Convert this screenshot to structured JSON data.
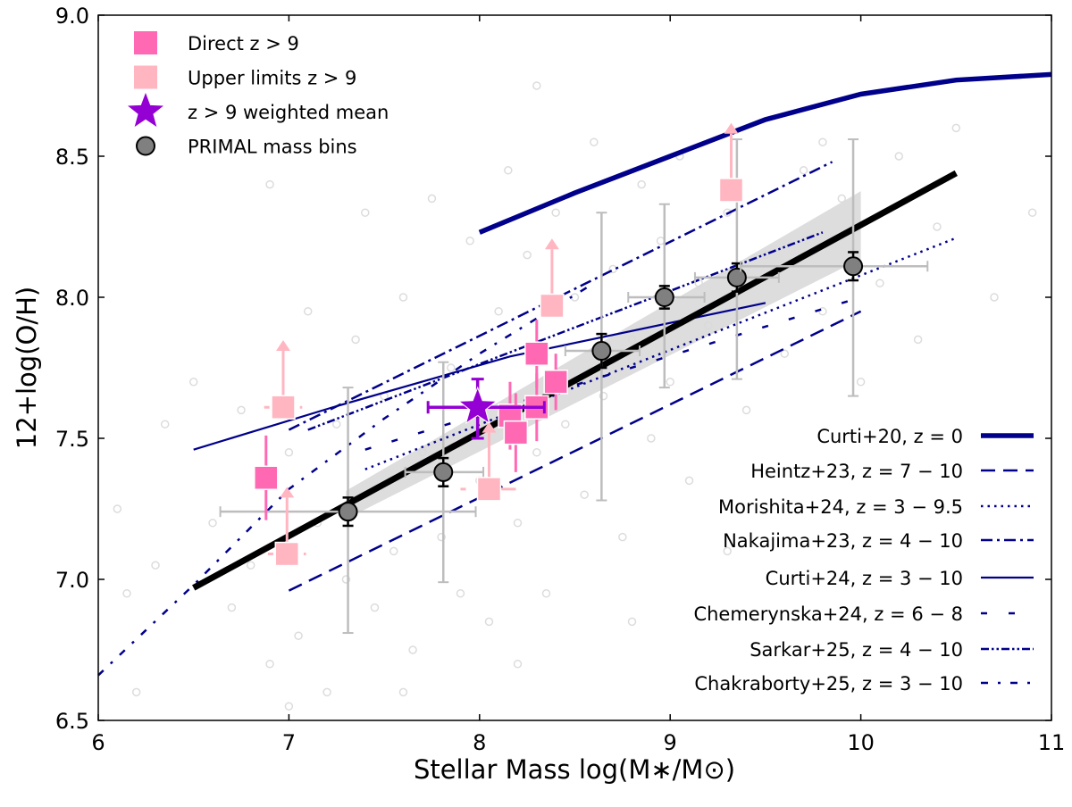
{
  "chart_data": {
    "type": "scatter",
    "xlabel": "Stellar Mass log(M∗/M⊙)",
    "ylabel": "12+log(O/H)",
    "xlim": [
      6,
      11
    ],
    "ylim": [
      6.5,
      9.0
    ],
    "xticks": [
      "6",
      "7",
      "8",
      "9",
      "10",
      "11"
    ],
    "yticks": [
      "6.5",
      "7.0",
      "7.5",
      "8.0",
      "8.5",
      "9.0"
    ],
    "grid": false,
    "legend_placement": [
      "top-left",
      "bottom-right"
    ],
    "colors": {
      "direct": "#ff69b4",
      "upper": "#ffb6c1",
      "mean": "#9400d3",
      "primal": "#808080",
      "relations": "#00008b",
      "fit": "#000000",
      "background": "#d3d3d3"
    },
    "marker_legend": [
      {
        "label": "Direct z > 9",
        "marker": "square",
        "color": "#ff69b4"
      },
      {
        "label": "Upper limits z > 9",
        "marker": "square",
        "color": "#ffb6c1"
      },
      {
        "label": "z > 9 weighted mean",
        "marker": "star",
        "color": "#9400d3"
      },
      {
        "label": "PRIMAL mass bins",
        "marker": "circle",
        "color": "#808080"
      }
    ],
    "direct": [
      {
        "x": 6.88,
        "y": 7.36,
        "yerr": 0.15
      },
      {
        "x": 8.16,
        "y": 7.58,
        "yerr": 0.12
      },
      {
        "x": 8.19,
        "y": 7.52,
        "yerr": 0.14
      },
      {
        "x": 8.3,
        "y": 7.61,
        "yerr": 0.12
      },
      {
        "x": 8.3,
        "y": 7.8,
        "yerr": 0.12
      },
      {
        "x": 8.4,
        "y": 7.7,
        "yerr": 0.1
      }
    ],
    "upper_limits": [
      {
        "x": 6.97,
        "y": 7.61,
        "xerr": 0.1
      },
      {
        "x": 6.99,
        "y": 7.09,
        "xerr": 0.1
      },
      {
        "x": 8.05,
        "y": 7.32,
        "xerr": 0.15
      },
      {
        "x": 8.38,
        "y": 7.97,
        "xerr": 0.0
      },
      {
        "x": 9.32,
        "y": 8.38,
        "xerr": 0.0
      }
    ],
    "weighted_mean": {
      "x": 7.99,
      "y": 7.61,
      "xerr": [
        7.73,
        8.34
      ],
      "yerr": [
        7.5,
        7.71
      ]
    },
    "primal_bins": [
      {
        "x": 7.31,
        "y": 7.24,
        "xrange": [
          6.64,
          7.98
        ],
        "yrange": [
          6.81,
          7.68
        ],
        "yerr": 0.05
      },
      {
        "x": 7.81,
        "y": 7.38,
        "xrange": [
          7.61,
          8.02
        ],
        "yrange": [
          6.99,
          7.77
        ],
        "yerr": 0.05
      },
      {
        "x": 8.64,
        "y": 7.81,
        "xrange": [
          8.45,
          8.84
        ],
        "yrange": [
          7.28,
          8.3
        ],
        "yerr": 0.06
      },
      {
        "x": 8.97,
        "y": 8.0,
        "xrange": [
          8.78,
          9.18
        ],
        "yrange": [
          7.68,
          8.33
        ],
        "yerr": 0.04
      },
      {
        "x": 9.35,
        "y": 8.07,
        "xrange": [
          9.13,
          9.57
        ],
        "yrange": [
          7.71,
          8.56
        ],
        "yerr": 0.05
      },
      {
        "x": 9.96,
        "y": 8.11,
        "xrange": [
          9.37,
          10.35
        ],
        "yrange": [
          7.65,
          8.56
        ],
        "yerr": 0.05
      }
    ],
    "fit": {
      "x": [
        6.5,
        10.5
      ],
      "y": [
        6.97,
        8.44
      ],
      "band_x": [
        7.3,
        10.0
      ],
      "band_halfwidth": [
        0.05,
        0.12
      ]
    },
    "relations": [
      {
        "name": "Curti+20, z = 0",
        "style": "thick",
        "x": [
          8.0,
          8.5,
          9.0,
          9.5,
          10.0,
          10.5,
          11.0
        ],
        "y": [
          8.23,
          8.37,
          8.5,
          8.63,
          8.72,
          8.77,
          8.79
        ]
      },
      {
        "name": "Heintz+23, z = 7 − 10",
        "style": "long-dash",
        "x": [
          7.0,
          10.0
        ],
        "y": [
          6.96,
          7.95
        ]
      },
      {
        "name": "Morishita+24, z = 3 − 9.5",
        "style": "dotted",
        "x": [
          7.4,
          10.5
        ],
        "y": [
          7.39,
          8.21
        ]
      },
      {
        "name": "Nakajima+23, z = 4 − 10",
        "style": "dash-dot",
        "x": [
          7.0,
          9.85
        ],
        "y": [
          7.53,
          8.48
        ]
      },
      {
        "name": "Curti+24, z = 3 − 10",
        "style": "solid",
        "x": [
          6.5,
          7.23,
          8.16,
          9.5
        ],
        "y": [
          7.46,
          7.61,
          7.79,
          7.98
        ]
      },
      {
        "name": "Chemerynska+24, z = 6 − 8",
        "style": "short-dash",
        "x": [
          7.4,
          10.0
        ],
        "y": [
          7.46,
          8.0
        ]
      },
      {
        "name": "Sarkar+25, z = 4 − 10",
        "style": "dash-dot-dot",
        "x": [
          7.1,
          9.8
        ],
        "y": [
          7.53,
          8.23
        ]
      },
      {
        "name": "Chakraborty+25, z = 3 − 10",
        "style": "loose-dash-dot",
        "x": [
          6.0,
          6.5,
          7.0,
          7.5,
          8.0,
          8.6
        ],
        "y": [
          6.66,
          6.98,
          7.32,
          7.57,
          7.8,
          8.05
        ]
      }
    ],
    "background_points": [
      [
        6.1,
        7.25
      ],
      [
        6.15,
        6.95
      ],
      [
        6.3,
        7.05
      ],
      [
        6.35,
        7.55
      ],
      [
        6.5,
        7.7
      ],
      [
        6.6,
        7.2
      ],
      [
        6.7,
        6.9
      ],
      [
        6.75,
        7.6
      ],
      [
        6.8,
        7.05
      ],
      [
        6.9,
        6.7
      ],
      [
        7.0,
        7.45
      ],
      [
        7.05,
        6.8
      ],
      [
        7.1,
        7.95
      ],
      [
        7.15,
        7.2
      ],
      [
        7.2,
        6.6
      ],
      [
        7.25,
        7.55
      ],
      [
        7.3,
        7.0
      ],
      [
        7.35,
        7.85
      ],
      [
        7.4,
        7.3
      ],
      [
        7.45,
        6.9
      ],
      [
        7.5,
        7.65
      ],
      [
        7.55,
        7.1
      ],
      [
        7.6,
        8.0
      ],
      [
        7.65,
        6.75
      ],
      [
        7.7,
        7.45
      ],
      [
        7.75,
        8.35
      ],
      [
        7.8,
        7.15
      ],
      [
        7.85,
        7.75
      ],
      [
        7.9,
        6.95
      ],
      [
        7.95,
        8.2
      ],
      [
        8.0,
        7.35
      ],
      [
        8.05,
        6.85
      ],
      [
        8.1,
        7.95
      ],
      [
        8.15,
        8.45
      ],
      [
        8.2,
        7.2
      ],
      [
        8.25,
        8.15
      ],
      [
        8.3,
        7.45
      ],
      [
        8.35,
        6.95
      ],
      [
        8.4,
        8.3
      ],
      [
        8.45,
        7.55
      ],
      [
        8.5,
        8.0
      ],
      [
        8.55,
        7.3
      ],
      [
        8.6,
        8.55
      ],
      [
        8.65,
        7.65
      ],
      [
        8.7,
        8.1
      ],
      [
        8.75,
        7.15
      ],
      [
        8.8,
        7.85
      ],
      [
        8.85,
        8.4
      ],
      [
        8.9,
        7.5
      ],
      [
        8.95,
        8.2
      ],
      [
        9.0,
        7.7
      ],
      [
        9.05,
        8.5
      ],
      [
        9.1,
        7.35
      ],
      [
        9.15,
        8.05
      ],
      [
        9.2,
        7.9
      ],
      [
        9.3,
        8.3
      ],
      [
        9.4,
        7.6
      ],
      [
        9.5,
        8.15
      ],
      [
        9.6,
        7.8
      ],
      [
        9.7,
        8.45
      ],
      [
        9.8,
        7.95
      ],
      [
        9.9,
        8.35
      ],
      [
        10.0,
        7.7
      ],
      [
        10.1,
        8.05
      ],
      [
        10.2,
        8.5
      ],
      [
        10.3,
        7.85
      ],
      [
        10.4,
        8.25
      ],
      [
        10.5,
        8.6
      ],
      [
        10.7,
        8.0
      ],
      [
        10.9,
        8.3
      ],
      [
        6.2,
        6.6
      ],
      [
        7.0,
        6.55
      ],
      [
        7.6,
        6.6
      ],
      [
        8.2,
        6.7
      ],
      [
        8.8,
        6.85
      ],
      [
        9.3,
        7.1
      ],
      [
        6.9,
        8.4
      ],
      [
        7.4,
        8.3
      ],
      [
        8.3,
        8.75
      ],
      [
        9.8,
        8.55
      ]
    ]
  }
}
